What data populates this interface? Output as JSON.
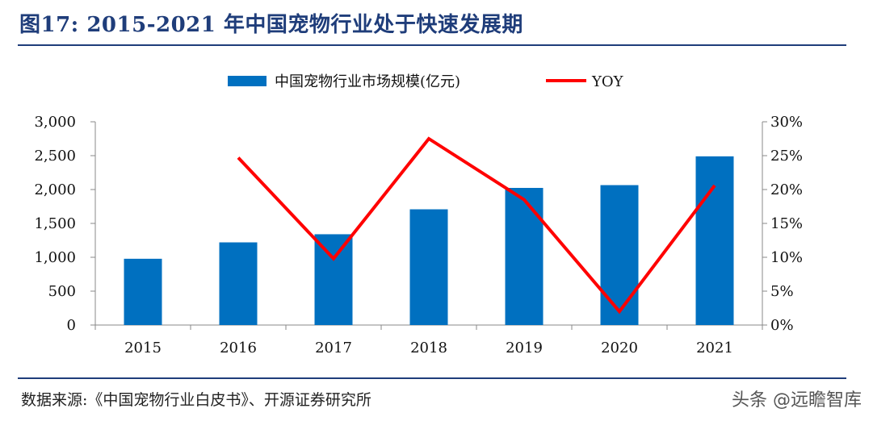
{
  "figure": {
    "title": "图17:  2015-2021 年中国宠物行业处于快速发展期",
    "source": "数据来源:《中国宠物行业白皮书》、开源证券研究所",
    "watermark": "头条 @远瞻智库"
  },
  "colors": {
    "bar": "#0070c0",
    "line": "#ff0000",
    "title": "#1f3d7a"
  },
  "chart_data": {
    "type": "bar",
    "categories": [
      "2015",
      "2016",
      "2017",
      "2018",
      "2019",
      "2020",
      "2021"
    ],
    "series": [
      {
        "name": "中国宠物行业市场规模(亿元)",
        "type": "bar",
        "axis": "left",
        "values": [
          978,
          1220,
          1340,
          1708,
          2024,
          2065,
          2490
        ]
      },
      {
        "name": "YOY",
        "type": "line",
        "axis": "right",
        "values": [
          null,
          24.7,
          9.8,
          27.5,
          18.5,
          2.0,
          20.6
        ]
      }
    ],
    "y_left": {
      "ylim": [
        0,
        3000
      ],
      "ticks": [
        "0",
        "500",
        "1,000",
        "1,500",
        "2,000",
        "2,500",
        "3,000"
      ]
    },
    "y_right": {
      "ylim": [
        0,
        30
      ],
      "ticks": [
        "0%",
        "5%",
        "10%",
        "15%",
        "20%",
        "25%",
        "30%"
      ]
    },
    "legend": {
      "position": "top-center",
      "labels": [
        "中国宠物行业市场规模(亿元)",
        "YOY"
      ]
    },
    "grid": false
  }
}
